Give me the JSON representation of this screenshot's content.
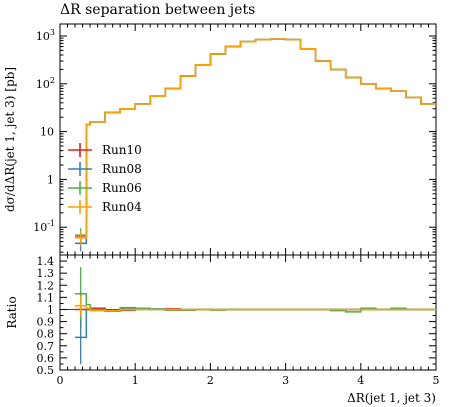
{
  "title": "ΔR separation between jets",
  "chart_data": [
    {
      "type": "line",
      "title": "ΔR separation between jets",
      "xlabel": "ΔR(jet 1, jet 3)",
      "ylabel": "dσ/dΔR(jet 1, jet 3) [pb]",
      "xlim": [
        0,
        5
      ],
      "ylim": [
        0.03,
        1500
      ],
      "yscale": "log",
      "x_ticks": [
        "0",
        "1",
        "2",
        "3",
        "4",
        "5"
      ],
      "y_ticks": [
        "10^{-1}",
        "1",
        "10",
        "10^{2}",
        "10^{3}"
      ],
      "legend_position": "left",
      "bin_edges": [
        0.2,
        0.35,
        0.4,
        0.6,
        0.8,
        1.0,
        1.2,
        1.4,
        1.6,
        1.8,
        2.0,
        2.2,
        2.4,
        2.6,
        2.8,
        3.0,
        3.2,
        3.4,
        3.6,
        3.8,
        4.0,
        4.2,
        4.4,
        4.6,
        4.8,
        5.0
      ],
      "series": [
        {
          "name": "Run10",
          "color": "#e41a1c",
          "values": [
            0.062,
            14,
            16,
            25,
            30,
            38,
            55,
            80,
            145,
            250,
            420,
            600,
            760,
            840,
            860,
            840,
            540,
            300,
            200,
            135,
            100,
            80,
            70,
            52,
            38
          ]
        },
        {
          "name": "Run08",
          "color": "#377eb8",
          "values": [
            0.046,
            14,
            16,
            25,
            30,
            38,
            55,
            80,
            145,
            250,
            420,
            600,
            760,
            840,
            860,
            840,
            540,
            300,
            200,
            135,
            100,
            80,
            70,
            52,
            38
          ]
        },
        {
          "name": "Run06",
          "color": "#4daf4a",
          "values": [
            0.068,
            14,
            16,
            25,
            30,
            38,
            55,
            80,
            145,
            250,
            420,
            600,
            760,
            840,
            860,
            840,
            540,
            300,
            200,
            135,
            100,
            80,
            70,
            52,
            38
          ]
        },
        {
          "name": "Run04",
          "color": "#ff9f00",
          "values": [
            0.06,
            14,
            16,
            25,
            30,
            38,
            55,
            80,
            145,
            250,
            420,
            600,
            760,
            840,
            860,
            840,
            540,
            300,
            200,
            135,
            100,
            80,
            70,
            52,
            38
          ]
        }
      ]
    },
    {
      "type": "line",
      "title": "",
      "xlabel": "ΔR(jet 1, jet 3)",
      "ylabel": "Ratio",
      "xlim": [
        0,
        5
      ],
      "ylim": [
        0.5,
        1.45
      ],
      "y_ticks": [
        "0.5",
        "0.6",
        "0.7",
        "0.8",
        "0.9",
        "1",
        "1.1",
        "1.2",
        "1.3",
        "1.4"
      ],
      "x_ticks": [
        "0",
        "1",
        "2",
        "3",
        "4",
        "5"
      ],
      "bin_edges": [
        0.2,
        0.35,
        0.4,
        0.6,
        0.8,
        1.0,
        1.2,
        1.4,
        1.6,
        1.8,
        2.0,
        2.2,
        2.4,
        2.6,
        2.8,
        3.0,
        3.2,
        3.4,
        3.6,
        3.8,
        4.0,
        4.2,
        4.4,
        4.6,
        4.8,
        5.0
      ],
      "series": [
        {
          "name": "Run10",
          "color": "#e41a1c",
          "values": [
            1.0,
            1.0,
            1.01,
            0.99,
            0.995,
            1.01,
            1.0,
            1.005,
            0.995,
            1.0,
            1.0,
            1.0,
            1.0,
            1.0,
            1.0,
            1.0,
            1.0,
            1.0,
            1.0,
            1.0,
            1.0,
            1.0,
            1.0,
            1.0,
            1.0
          ],
          "err_first": 0.15
        },
        {
          "name": "Run08",
          "color": "#377eb8",
          "values": [
            0.77,
            1.0,
            1.0,
            0.99,
            1.005,
            1.0,
            1.005,
            0.995,
            1.0,
            1.0,
            1.0,
            1.0,
            1.0,
            1.0,
            1.0,
            1.0,
            1.0,
            1.0,
            1.0,
            1.0,
            1.005,
            1.0,
            1.0,
            1.0,
            1.0
          ],
          "err_first": 0.22
        },
        {
          "name": "Run06",
          "color": "#4daf4a",
          "values": [
            1.13,
            1.04,
            1.0,
            0.985,
            1.015,
            1.01,
            1.0,
            0.995,
            0.995,
            1.0,
            0.995,
            1.0,
            1.0,
            1.0,
            1.0,
            1.0,
            1.0,
            1.0,
            0.99,
            0.98,
            1.01,
            1.0,
            1.01,
            1.0,
            1.0
          ],
          "err_first": 0.22
        },
        {
          "name": "Run04",
          "color": "#ff9f00",
          "values": [
            1.03,
            1.01,
            0.99,
            0.99,
            1.0,
            1.0,
            1.0,
            1.0,
            1.0,
            1.0,
            1.0,
            1.0,
            1.0,
            1.0,
            1.0,
            1.0,
            1.0,
            1.0,
            1.0,
            1.0,
            1.0,
            1.0,
            1.0,
            1.0,
            1.0
          ],
          "err_first": 0.08
        }
      ]
    }
  ]
}
